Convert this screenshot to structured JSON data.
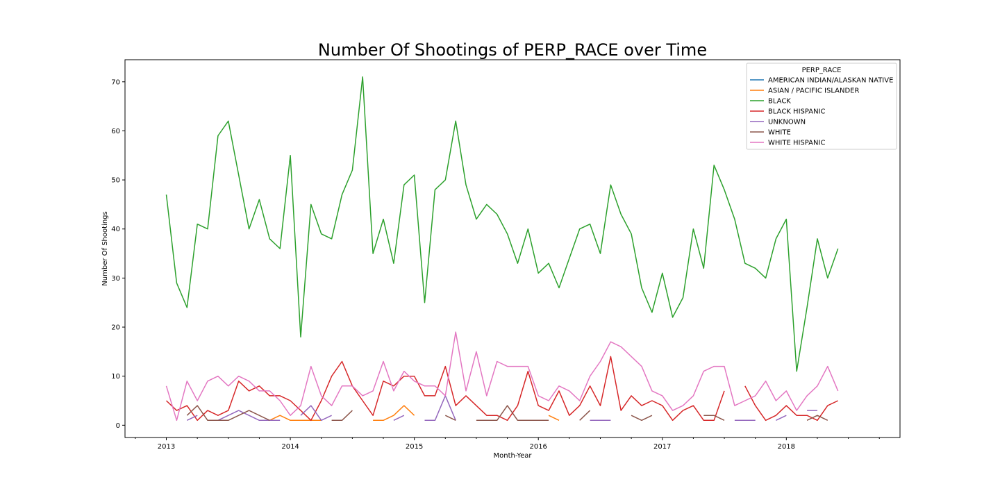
{
  "chart_data": {
    "type": "line",
    "title": "Number Of Shootings of PERP_RACE over Time",
    "xlabel": "Month-Year",
    "ylabel": "Number Of Shootings",
    "x_tick_labels": [
      "2013",
      "2014",
      "2015",
      "2016",
      "2017",
      "2018"
    ],
    "y_ticks": [
      0,
      10,
      20,
      30,
      40,
      50,
      60,
      70
    ],
    "xlim": [
      "2012-09",
      "2018-12"
    ],
    "ylim": [
      -2.5,
      74.5
    ],
    "grid": false,
    "legend": {
      "title": "PERP_RACE",
      "position": "top-right"
    },
    "months": [
      "2013-01",
      "2013-02",
      "2013-03",
      "2013-04",
      "2013-05",
      "2013-06",
      "2013-07",
      "2013-08",
      "2013-09",
      "2013-10",
      "2013-11",
      "2013-12",
      "2014-01",
      "2014-02",
      "2014-03",
      "2014-04",
      "2014-05",
      "2014-06",
      "2014-07",
      "2014-08",
      "2014-09",
      "2014-10",
      "2014-11",
      "2014-12",
      "2015-01",
      "2015-02",
      "2015-03",
      "2015-04",
      "2015-05",
      "2015-06",
      "2015-07",
      "2015-08",
      "2015-09",
      "2015-10",
      "2015-11",
      "2015-12",
      "2016-01",
      "2016-02",
      "2016-03",
      "2016-04",
      "2016-05",
      "2016-06",
      "2016-07",
      "2016-08",
      "2016-09",
      "2016-10",
      "2016-11",
      "2016-12",
      "2017-01",
      "2017-02",
      "2017-03",
      "2017-04",
      "2017-05",
      "2017-06",
      "2017-07",
      "2017-08",
      "2017-09",
      "2017-10",
      "2017-11",
      "2017-12",
      "2018-01",
      "2018-02",
      "2018-03",
      "2018-04",
      "2018-05",
      "2018-06"
    ],
    "series": [
      {
        "name": "AMERICAN INDIAN/ALASKAN NATIVE",
        "color": "#1f77b4",
        "values": [
          null,
          null,
          null,
          null,
          null,
          null,
          null,
          null,
          null,
          null,
          null,
          null,
          null,
          null,
          null,
          null,
          null,
          null,
          null,
          null,
          null,
          null,
          null,
          null,
          null,
          null,
          null,
          null,
          null,
          null,
          null,
          null,
          null,
          null,
          null,
          null,
          null,
          null,
          null,
          null,
          null,
          null,
          null,
          null,
          null,
          null,
          null,
          null,
          null,
          null,
          null,
          null,
          null,
          null,
          null,
          null,
          null,
          null,
          null,
          null,
          null,
          null,
          null,
          null,
          null,
          null
        ]
      },
      {
        "name": "ASIAN / PACIFIC ISLANDER",
        "color": "#ff7f0e",
        "values": [
          null,
          null,
          null,
          null,
          null,
          null,
          null,
          null,
          null,
          null,
          1,
          2,
          1,
          1,
          1,
          1,
          null,
          null,
          null,
          null,
          1,
          1,
          2,
          4,
          2,
          null,
          null,
          null,
          null,
          null,
          null,
          null,
          null,
          null,
          null,
          null,
          null,
          2,
          1,
          null,
          null,
          null,
          null,
          null,
          null,
          null,
          null,
          null,
          null,
          null,
          null,
          null,
          null,
          null,
          null,
          null,
          null,
          null,
          null,
          null,
          null,
          null,
          null,
          null,
          null,
          null
        ]
      },
      {
        "name": "BLACK",
        "color": "#2ca02c",
        "values": [
          47,
          29,
          24,
          41,
          40,
          59,
          62,
          51,
          40,
          46,
          38,
          36,
          55,
          18,
          45,
          39,
          38,
          47,
          52,
          71,
          35,
          42,
          33,
          49,
          51,
          25,
          48,
          50,
          62,
          49,
          42,
          45,
          43,
          39,
          33,
          40,
          31,
          33,
          28,
          34,
          40,
          41,
          35,
          49,
          43,
          39,
          28,
          23,
          31,
          22,
          26,
          40,
          32,
          53,
          48,
          42,
          33,
          32,
          30,
          38,
          42,
          11,
          24,
          38,
          30,
          36
        ]
      },
      {
        "name": "BLACK HISPANIC",
        "color": "#d62728",
        "values": [
          5,
          3,
          4,
          1,
          3,
          2,
          3,
          9,
          7,
          8,
          6,
          6,
          5,
          3,
          1,
          5,
          10,
          13,
          8,
          5,
          2,
          9,
          8,
          10,
          10,
          6,
          6,
          12,
          4,
          6,
          4,
          2,
          2,
          1,
          4,
          11,
          4,
          3,
          7,
          2,
          4,
          8,
          4,
          14,
          3,
          6,
          4,
          5,
          4,
          1,
          3,
          4,
          1,
          1,
          7,
          null,
          8,
          4,
          1,
          2,
          4,
          2,
          2,
          1,
          4,
          5
        ]
      },
      {
        "name": "UNKNOWN",
        "color": "#9467bd",
        "values": [
          null,
          null,
          1,
          2,
          null,
          1,
          2,
          3,
          2,
          1,
          1,
          1,
          null,
          2,
          4,
          1,
          2,
          null,
          null,
          2,
          null,
          null,
          1,
          2,
          null,
          1,
          1,
          6,
          1,
          null,
          null,
          null,
          null,
          null,
          null,
          null,
          null,
          null,
          null,
          null,
          null,
          1,
          1,
          1,
          null,
          null,
          null,
          null,
          null,
          null,
          null,
          null,
          null,
          null,
          null,
          1,
          1,
          1,
          null,
          1,
          2,
          null,
          3,
          3,
          null,
          null
        ]
      },
      {
        "name": "WHITE",
        "color": "#8c564b",
        "values": [
          null,
          null,
          2,
          4,
          1,
          1,
          1,
          2,
          3,
          2,
          1,
          null,
          null,
          1,
          null,
          null,
          1,
          1,
          3,
          null,
          null,
          null,
          null,
          null,
          null,
          null,
          null,
          2,
          1,
          null,
          1,
          1,
          1,
          4,
          1,
          1,
          1,
          1,
          null,
          null,
          1,
          3,
          null,
          null,
          null,
          2,
          1,
          2,
          null,
          null,
          null,
          null,
          2,
          2,
          1,
          null,
          null,
          null,
          null,
          null,
          null,
          null,
          1,
          2,
          1,
          null
        ]
      },
      {
        "name": "WHITE HISPANIC",
        "color": "#e377c2",
        "values": [
          8,
          1,
          9,
          5,
          9,
          10,
          8,
          10,
          9,
          7,
          7,
          5,
          2,
          4,
          12,
          6,
          4,
          8,
          8,
          6,
          7,
          13,
          7,
          11,
          9,
          8,
          8,
          6,
          19,
          7,
          15,
          6,
          13,
          12,
          12,
          12,
          6,
          5,
          8,
          7,
          5,
          10,
          13,
          17,
          16,
          14,
          12,
          7,
          6,
          3,
          4,
          6,
          11,
          12,
          12,
          4,
          5,
          6,
          9,
          5,
          7,
          3,
          6,
          8,
          12,
          7
        ]
      }
    ]
  }
}
